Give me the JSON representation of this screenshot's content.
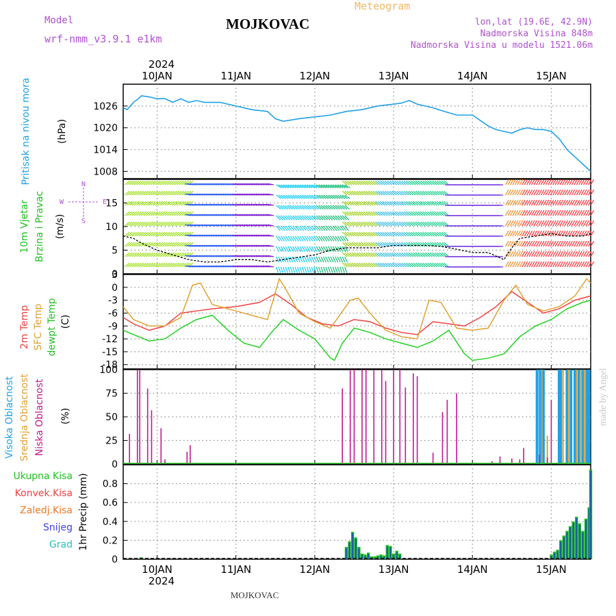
{
  "header": {
    "model_label": "Model",
    "model_name": "wrf-nmm_v3.9.1 e1km",
    "station": "MOJKOVAC",
    "product": "Meteogram",
    "lonlat": "lon,lat (19.6E, 42.9N)",
    "elevation": "Nadmorska Visina 848m",
    "model_elevation": "Nadmorska Visina u modelu 1521.06m",
    "year": "2024",
    "footer_station": "MOJKOVAC",
    "credit": "made by Angel"
  },
  "colors": {
    "pressure": "#1ea0e6",
    "temp2m": "#f04040",
    "sfc": "#e0a030",
    "dew": "#20d020",
    "high_cloud": "#20a0e8",
    "mid_cloud": "#e0a030",
    "low_cloud": "#c01890",
    "total_precip": "#20c020",
    "conv_precip": "#f04040",
    "frz_precip": "#f07820",
    "snow": "#4040e0",
    "hail": "#20c0c0",
    "purple_text": "#b050d0",
    "orange_text": "#f0b860"
  },
  "chart_data": [
    {
      "type": "line",
      "panel": "pressure",
      "ylabel_1": "Pritisak na nivou mora",
      "ylabel_2": "(hPa)",
      "ylim": [
        1006,
        1032
      ],
      "y_ticks": [
        1026,
        1020,
        1014,
        1008
      ],
      "grid": true,
      "x_ticks": [
        "10JAN",
        "11JAN",
        "12JAN",
        "13JAN",
        "14JAN",
        "15JAN"
      ],
      "x_range_days": [
        9.57,
        15.5
      ],
      "series": [
        {
          "x": [
            9.57,
            9.62,
            9.7,
            9.75,
            9.8,
            9.9,
            10.0,
            10.1,
            10.2,
            10.3,
            10.4,
            10.5,
            10.6,
            10.8,
            11.0,
            11.2,
            11.4,
            11.5,
            11.6,
            11.8,
            12.0,
            12.2,
            12.4,
            12.6,
            12.8,
            13.0,
            13.1,
            13.2,
            13.3,
            13.4,
            13.5,
            13.6,
            13.8,
            14.0,
            14.1,
            14.2,
            14.3,
            14.4,
            14.5,
            14.6,
            14.7,
            14.8,
            14.9,
            15.0,
            15.1,
            15.2,
            15.3,
            15.4,
            15.5
          ],
          "values": [
            1025.5,
            1025.0,
            1027.0,
            1027.8,
            1028.8,
            1028.5,
            1028.0,
            1028.0,
            1027.0,
            1028.0,
            1027.0,
            1027.5,
            1027.0,
            1027.0,
            1026.0,
            1025.0,
            1024.5,
            1022.5,
            1021.8,
            1022.5,
            1023.0,
            1023.5,
            1024.5,
            1025.0,
            1026.0,
            1026.5,
            1026.8,
            1027.5,
            1026.5,
            1026.0,
            1025.5,
            1024.8,
            1023.5,
            1023.5,
            1022.0,
            1020.5,
            1019.5,
            1019.0,
            1018.5,
            1019.5,
            1020.0,
            1019.5,
            1019.5,
            1019.0,
            1017.0,
            1014.0,
            1012.0,
            1010.0,
            1008.0
          ]
        }
      ]
    },
    {
      "type": "line",
      "panel": "wind",
      "ylabel_1": "10m Vjetar",
      "ylabel_2": "Brzina i Pravac",
      "ylabel_3": "(m/s)",
      "compass": [
        "N",
        "S",
        "W",
        "E"
      ],
      "ylim": [
        0,
        20
      ],
      "y_ticks": [
        15,
        10,
        5,
        0
      ],
      "grid": true,
      "series": [
        {
          "name": "speed",
          "x": [
            9.57,
            9.7,
            9.8,
            10.0,
            10.2,
            10.4,
            10.6,
            10.8,
            11.0,
            11.2,
            11.4,
            11.6,
            11.8,
            12.0,
            12.2,
            12.4,
            12.6,
            12.8,
            13.0,
            13.2,
            13.4,
            13.6,
            13.8,
            14.0,
            14.2,
            14.4,
            14.5,
            14.6,
            14.8,
            15.0,
            15.2,
            15.4,
            15.5
          ],
          "values": [
            8.0,
            7.5,
            6.5,
            5.0,
            4.0,
            3.0,
            2.5,
            2.5,
            3.0,
            3.0,
            2.5,
            3.0,
            3.5,
            4.0,
            5.0,
            5.5,
            5.5,
            5.5,
            6.0,
            6.0,
            6.0,
            5.8,
            5.2,
            4.5,
            4.5,
            3.0,
            5.5,
            7.5,
            8.0,
            8.5,
            8.0,
            8.0,
            8.5
          ]
        }
      ],
      "arrow_bands": [
        {
          "from": 9.57,
          "to": 10.4,
          "color": "#a0e020"
        },
        {
          "from": 10.4,
          "to": 11.0,
          "color": "#3060f0"
        },
        {
          "from": 11.0,
          "to": 11.5,
          "color": "#8020d0"
        },
        {
          "from": 11.5,
          "to": 12.0,
          "color": "#20d0f0"
        },
        {
          "from": 12.0,
          "to": 12.4,
          "color": "#20c080"
        },
        {
          "from": 12.4,
          "to": 12.8,
          "color": "#a0d020"
        },
        {
          "from": 12.8,
          "to": 13.2,
          "color": "#40c0e0"
        },
        {
          "from": 13.2,
          "to": 13.7,
          "color": "#20d090"
        },
        {
          "from": 13.7,
          "to": 14.4,
          "color": "#7030e0"
        },
        {
          "from": 14.4,
          "to": 14.6,
          "color": "#f09030"
        },
        {
          "from": 14.6,
          "to": 15.5,
          "color": "#f04040"
        }
      ]
    },
    {
      "type": "line",
      "panel": "temperature",
      "ylabel_1": "2m Temp",
      "ylabel_2": "SFC Temp",
      "ylabel_3": "dewpt Temp",
      "ylabel_4": "(C)",
      "ylim": [
        -19,
        3
      ],
      "y_ticks": [
        3,
        0,
        -3,
        -6,
        -9,
        -12,
        -15,
        -18
      ],
      "grid": true,
      "series": [
        {
          "name": "2m Temp",
          "x": [
            9.57,
            9.7,
            9.9,
            10.1,
            10.3,
            10.5,
            10.7,
            11.0,
            11.3,
            11.5,
            11.7,
            11.9,
            12.1,
            12.3,
            12.5,
            12.7,
            12.9,
            13.1,
            13.3,
            13.5,
            13.7,
            13.9,
            14.1,
            14.3,
            14.5,
            14.7,
            14.9,
            15.1,
            15.3,
            15.5
          ],
          "values": [
            -7.0,
            -8.5,
            -10.0,
            -9.0,
            -6.0,
            -5.5,
            -5.0,
            -4.5,
            -3.5,
            -1.5,
            -4.0,
            -7.0,
            -8.5,
            -9.0,
            -7.5,
            -8.0,
            -9.5,
            -10.5,
            -11.0,
            -8.0,
            -8.5,
            -9.0,
            -7.0,
            -4.5,
            -1.0,
            -3.5,
            -6.0,
            -5.0,
            -3.0,
            -2.0
          ]
        },
        {
          "name": "SFC Temp",
          "x": [
            9.57,
            9.7,
            9.9,
            10.1,
            10.3,
            10.45,
            10.55,
            10.7,
            11.0,
            11.2,
            11.4,
            11.55,
            11.65,
            11.8,
            12.0,
            12.2,
            12.45,
            12.55,
            12.7,
            12.9,
            13.1,
            13.3,
            13.45,
            13.6,
            13.8,
            14.0,
            14.2,
            14.4,
            14.55,
            14.7,
            14.9,
            15.1,
            15.3,
            15.45,
            15.5
          ],
          "values": [
            -4.5,
            -7.5,
            -9.0,
            -9.0,
            -7.0,
            0.5,
            1.0,
            -4.0,
            -5.5,
            -6.5,
            -7.5,
            2.0,
            -1.0,
            -6.0,
            -8.0,
            -9.5,
            -3.0,
            -2.5,
            -6.0,
            -10.0,
            -11.5,
            -12.0,
            -3.0,
            -3.5,
            -9.5,
            -10.0,
            -9.5,
            -3.0,
            0.5,
            -4.0,
            -5.5,
            -4.5,
            -2.0,
            2.0,
            1.0
          ]
        },
        {
          "name": "dewpt Temp",
          "x": [
            9.57,
            9.7,
            9.9,
            10.1,
            10.3,
            10.5,
            10.7,
            10.9,
            11.1,
            11.3,
            11.45,
            11.6,
            11.8,
            12.0,
            12.2,
            12.25,
            12.35,
            12.5,
            12.7,
            12.9,
            13.1,
            13.3,
            13.5,
            13.7,
            13.9,
            14.0,
            14.2,
            14.4,
            14.6,
            14.8,
            15.0,
            15.2,
            15.4,
            15.5
          ],
          "values": [
            -10.0,
            -11.0,
            -12.5,
            -12.0,
            -9.5,
            -7.5,
            -6.5,
            -10.0,
            -13.0,
            -14.0,
            -10.5,
            -7.5,
            -10.0,
            -12.0,
            -16.5,
            -17.0,
            -13.0,
            -9.5,
            -10.5,
            -12.0,
            -13.0,
            -14.0,
            -12.5,
            -10.0,
            -15.5,
            -17.0,
            -16.5,
            -15.5,
            -11.5,
            -9.0,
            -7.5,
            -5.0,
            -3.5,
            -3.0
          ]
        }
      ]
    },
    {
      "type": "bar",
      "panel": "cloud",
      "ylabel_1": "Visoka Oblacnost",
      "ylabel_2": "Srednja Oblacnost",
      "ylabel_3": "Niska Oblacnost",
      "ylabel_4": "(%)",
      "ylim": [
        0,
        100
      ],
      "y_ticks": [
        100,
        75,
        50,
        25,
        0
      ],
      "grid": true,
      "low": {
        "x": [
          9.65,
          9.75,
          9.78,
          9.88,
          9.93,
          10.05,
          10.1,
          10.38,
          10.42,
          12.35,
          12.45,
          12.5,
          12.6,
          12.65,
          12.75,
          12.85,
          12.9,
          13.0,
          13.08,
          13.15,
          13.25,
          13.3,
          13.5,
          13.62,
          13.68,
          13.8,
          14.25,
          14.35,
          14.5,
          14.6,
          14.65,
          14.85,
          14.95,
          15.0
        ],
        "values": [
          32,
          100,
          100,
          80,
          57,
          38,
          5,
          13,
          20,
          80,
          100,
          100,
          100,
          100,
          100,
          100,
          88,
          100,
          100,
          81,
          96,
          93,
          12,
          55,
          68,
          75,
          3,
          8,
          6,
          5,
          17,
          10,
          7,
          68
        ]
      },
      "high": {
        "x": [
          14.82,
          14.86,
          14.9,
          15.1,
          15.12,
          15.2,
          15.25,
          15.3,
          15.35,
          15.4,
          15.45,
          15.48
        ],
        "values": [
          100,
          100,
          100,
          100,
          100,
          100,
          100,
          100,
          100,
          100,
          100,
          100
        ]
      },
      "mid": {
        "x": [
          14.88,
          14.95,
          15.15,
          15.22,
          15.32,
          15.38,
          15.42
        ],
        "values": [
          100,
          30,
          100,
          100,
          100,
          100,
          100
        ]
      }
    },
    {
      "type": "bar",
      "panel": "precip",
      "ylabel_1": "1hr Precip (mm)",
      "legend": [
        "Ukupna Kisa",
        "Konvek.Kisa",
        "Zaledj.Kisa",
        "Snijeg",
        "Grad"
      ],
      "ylim": [
        0,
        1.0
      ],
      "y_ticks": [
        0.8,
        0.6,
        0.4,
        0.2,
        0
      ],
      "grid": true,
      "x_ticks": [
        "10JAN",
        "11JAN",
        "12JAN",
        "13JAN",
        "14JAN",
        "15JAN"
      ],
      "x": [
        9.8,
        12.4,
        12.44,
        12.48,
        12.52,
        12.56,
        12.6,
        12.64,
        12.68,
        12.72,
        12.76,
        12.8,
        12.84,
        12.88,
        12.92,
        12.96,
        13.0,
        13.04,
        13.08,
        15.0,
        15.04,
        15.08,
        15.12,
        15.16,
        15.2,
        15.24,
        15.28,
        15.32,
        15.36,
        15.4,
        15.44,
        15.48,
        15.5
      ],
      "values": [
        0.02,
        0.13,
        0.19,
        0.29,
        0.23,
        0.13,
        0.06,
        0.05,
        0.07,
        0.03,
        0.03,
        0.04,
        0.05,
        0.04,
        0.15,
        0.14,
        0.06,
        0.09,
        0.06,
        0.05,
        0.08,
        0.1,
        0.2,
        0.25,
        0.3,
        0.35,
        0.4,
        0.45,
        0.38,
        0.3,
        0.43,
        0.55,
        0.95
      ]
    }
  ]
}
